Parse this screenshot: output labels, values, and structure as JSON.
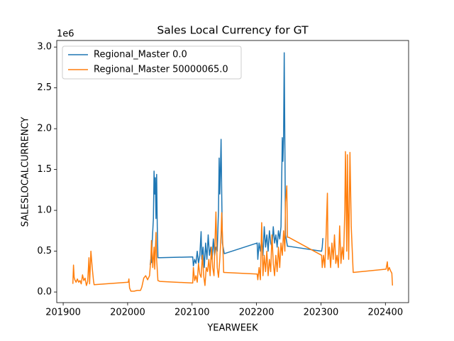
{
  "chart_data": {
    "type": "line",
    "title": "Sales Local Currency for GT",
    "xlabel": "YEARWEEK",
    "ylabel": "SALESLOCALCURRENCY",
    "y_offset_label": "1e6",
    "legend": "upper left",
    "grid": false,
    "xlim": [
      201890,
      202436
    ],
    "ylim": [
      -0.13,
      3.08
    ],
    "xticks": [
      201900,
      202000,
      202100,
      202200,
      202300,
      202400
    ],
    "yticks": [
      {
        "value": 0,
        "label": "0.0"
      },
      {
        "value": 0.5,
        "label": "0.5"
      },
      {
        "value": 1,
        "label": "1.0"
      },
      {
        "value": 1.5,
        "label": "1.5"
      },
      {
        "value": 2,
        "label": "2.0"
      },
      {
        "value": 2.5,
        "label": "2.5"
      },
      {
        "value": 3,
        "label": "3.0"
      }
    ],
    "series": [
      {
        "name": "Regional_Master 0.0",
        "color": "#1f77b4",
        "x": [
          202035,
          202036,
          202037,
          202038,
          202040,
          202041,
          202042,
          202043,
          202044,
          202045,
          202046,
          202047,
          202050,
          202101,
          202102,
          202104,
          202106,
          202108,
          202110,
          202112,
          202114,
          202115,
          202117,
          202119,
          202121,
          202123,
          202125,
          202127,
          202129,
          202131,
          202133,
          202135,
          202137,
          202139,
          202141,
          202142,
          202143,
          202144,
          202145,
          202146,
          202147,
          202150,
          202201,
          202202,
          202204,
          202206,
          202208,
          202210,
          202212,
          202214,
          202216,
          202218,
          202220,
          202222,
          202224,
          202226,
          202228,
          202230,
          202232,
          202234,
          202236,
          202238,
          202240,
          202241,
          202242,
          202243,
          202244,
          202245,
          202248,
          202250,
          202301,
          202302,
          202303
        ],
        "values": [
          0.33,
          0.4,
          0.36,
          0.6,
          0.9,
          1.48,
          1.2,
          1.4,
          0.9,
          1.44,
          0.8,
          0.42,
          0.42,
          0.43,
          0.32,
          0.4,
          0.35,
          0.5,
          0.35,
          0.45,
          0.74,
          0.4,
          0.55,
          0.3,
          0.6,
          0.4,
          0.7,
          0.45,
          0.55,
          0.4,
          0.65,
          0.45,
          0.55,
          0.5,
          1.0,
          1.64,
          1.2,
          1.5,
          1.87,
          1.2,
          0.6,
          0.47,
          0.6,
          0.4,
          0.6,
          0.5,
          0.65,
          0.45,
          0.8,
          0.55,
          0.7,
          0.5,
          0.75,
          0.6,
          0.55,
          0.8,
          0.6,
          0.7,
          0.55,
          0.75,
          0.65,
          0.8,
          1.89,
          1.6,
          1.9,
          2.93,
          1.8,
          0.7,
          0.56,
          0.56,
          0.5,
          0.55,
          0.66
        ]
      },
      {
        "name": "Regional_Master 50000065.0",
        "color": "#ff7f0e",
        "x": [
          201915,
          201916,
          201917,
          201918,
          201920,
          201922,
          201924,
          201926,
          201928,
          201930,
          201932,
          201934,
          201936,
          201938,
          201940,
          201941,
          201943,
          201945,
          201947,
          201948,
          202001,
          202002,
          202003,
          202005,
          202010,
          202015,
          202020,
          202022,
          202025,
          202028,
          202031,
          202034,
          202036,
          202037,
          202039,
          202041,
          202042,
          202044,
          202045,
          202047,
          202050,
          202101,
          202102,
          202104,
          202106,
          202108,
          202110,
          202112,
          202114,
          202116,
          202118,
          202120,
          202122,
          202124,
          202126,
          202128,
          202130,
          202132,
          202134,
          202137,
          202139,
          202141,
          202143,
          202145,
          202146,
          202148,
          202149,
          202150,
          202201,
          202202,
          202204,
          202206,
          202208,
          202210,
          202212,
          202214,
          202216,
          202218,
          202220,
          202222,
          202224,
          202226,
          202228,
          202230,
          202232,
          202234,
          202236,
          202238,
          202240,
          202242,
          202244,
          202245,
          202247,
          202248,
          202250,
          202301,
          202302,
          202304,
          202306,
          202308,
          202310,
          202311,
          202313,
          202315,
          202317,
          202319,
          202321,
          202323,
          202325,
          202327,
          202329,
          202331,
          202333,
          202335,
          202337,
          202338,
          202340,
          202341,
          202343,
          202345,
          202347,
          202350,
          202401,
          202403,
          202404,
          202406,
          202408,
          202410,
          202411
        ],
        "values": [
          0.1,
          0.33,
          0.18,
          0.15,
          0.12,
          0.16,
          0.12,
          0.14,
          0.1,
          0.21,
          0.14,
          0.17,
          0.08,
          0.13,
          0.42,
          0.1,
          0.5,
          0.3,
          0.14,
          0.09,
          0.12,
          0.16,
          0.05,
          0.01,
          0.01,
          0.02,
          0.02,
          0.06,
          0.17,
          0.2,
          0.15,
          0.2,
          0.4,
          0.63,
          0.3,
          0.55,
          0.28,
          0.73,
          0.4,
          0.14,
          0.13,
          0.11,
          0.3,
          0.14,
          0.2,
          0.12,
          0.35,
          0.22,
          0.18,
          0.45,
          0.2,
          0.08,
          0.3,
          0.25,
          0.4,
          0.2,
          0.55,
          0.3,
          0.2,
          0.98,
          0.3,
          0.18,
          0.4,
          0.7,
          0.97,
          0.5,
          0.24,
          0.24,
          0.22,
          0.15,
          0.3,
          0.15,
          0.85,
          0.2,
          0.45,
          0.25,
          0.5,
          0.2,
          0.4,
          0.25,
          0.7,
          0.35,
          0.2,
          0.45,
          0.25,
          0.55,
          0.3,
          0.6,
          0.45,
          0.75,
          0.5,
          1.1,
          1.3,
          0.67,
          0.67,
          0.45,
          0.3,
          0.45,
          0.3,
          0.7,
          1.21,
          0.4,
          0.55,
          0.3,
          0.6,
          0.4,
          0.7,
          0.35,
          0.45,
          0.3,
          0.81,
          0.35,
          0.55,
          0.4,
          1.0,
          1.72,
          0.5,
          1.68,
          0.4,
          1.71,
          0.8,
          0.24,
          0.28,
          0.37,
          0.26,
          0.3,
          0.26,
          0.23,
          0.08
        ]
      }
    ]
  }
}
